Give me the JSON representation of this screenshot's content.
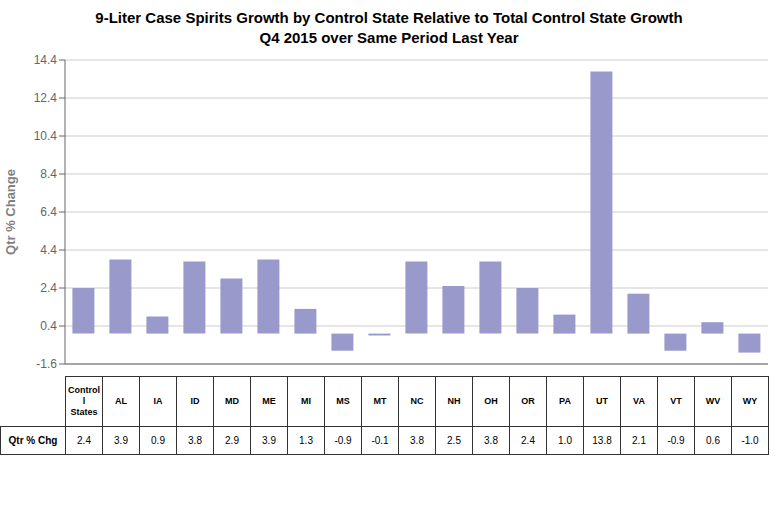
{
  "chart_data": {
    "type": "bar",
    "title": "9-Liter Case Spirits Growth by Control State Relative to Total Control State Growth",
    "subtitle": "Q4 2015 over Same Period Last Year",
    "ylabel": "Qtr % Change",
    "categories": [
      "Control\nl\nStates",
      "AL",
      "IA",
      "ID",
      "MD",
      "ME",
      "MI",
      "MS",
      "MT",
      "NC",
      "NH",
      "OH",
      "OR",
      "PA",
      "UT",
      "VA",
      "VT",
      "WV",
      "WY"
    ],
    "values": [
      2.4,
      3.9,
      0.9,
      3.8,
      2.9,
      3.9,
      1.3,
      -0.9,
      -0.1,
      3.8,
      2.5,
      3.8,
      2.4,
      1.0,
      13.8,
      2.1,
      -0.9,
      0.6,
      -1.0
    ],
    "value_labels": [
      "2.4",
      "3.9",
      "0.9",
      "3.8",
      "2.9",
      "3.9",
      "1.3",
      "-0.9",
      "-0.1",
      "3.8",
      "2.5",
      "3.8",
      "2.4",
      "1.0",
      "13.8",
      "2.1",
      "-0.9",
      "0.6",
      "-1.0"
    ],
    "row_label": "Qtr % Chg",
    "data_labels": true,
    "color": "#9999CC",
    "ylim": [
      -1.6,
      14.4
    ],
    "yticks": [
      -1.6,
      0.4,
      2.4,
      4.4,
      6.4,
      8.4,
      10.4,
      12.4,
      14.4
    ],
    "grid": true
  }
}
